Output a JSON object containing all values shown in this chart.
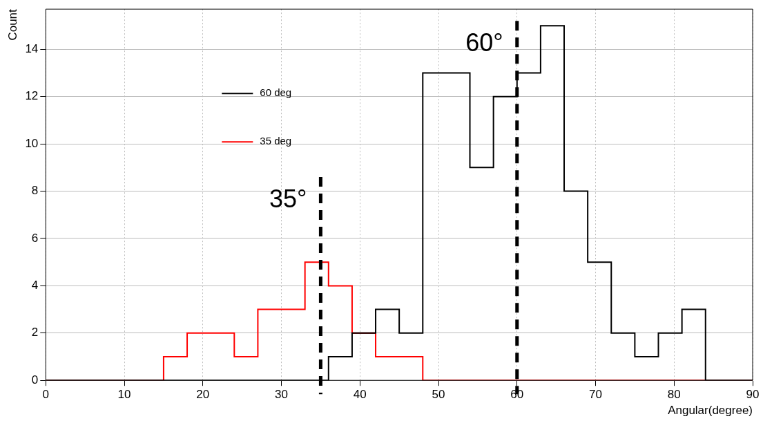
{
  "chart_data": {
    "type": "histogram",
    "xlabel": "Angular(degree)",
    "ylabel": "Count",
    "bins": [
      0,
      3,
      6,
      9,
      12,
      15,
      18,
      21,
      24,
      27,
      30,
      33,
      36,
      39,
      42,
      45,
      48,
      51,
      54,
      57,
      60,
      63,
      66,
      69,
      72,
      75,
      78,
      81,
      84,
      87,
      90
    ],
    "series": [
      {
        "name": "60 deg",
        "color": "#000000",
        "values": [
          0,
          0,
          0,
          0,
          0,
          0,
          0,
          0,
          0,
          0,
          0,
          0,
          1,
          2,
          3,
          2,
          13,
          13,
          9,
          12,
          13,
          15,
          8,
          5,
          2,
          1,
          2,
          3,
          0,
          0
        ]
      },
      {
        "name": "35 deg",
        "color": "#ff0000",
        "values": [
          0,
          0,
          0,
          0,
          0,
          1,
          2,
          2,
          1,
          3,
          3,
          5,
          4,
          2,
          1,
          1,
          0,
          0,
          0,
          0,
          0,
          0,
          0,
          0,
          0,
          0,
          0,
          0,
          0,
          0
        ]
      }
    ],
    "xlim": [
      0,
      90
    ],
    "xticks": [
      0,
      10,
      20,
      30,
      40,
      50,
      60,
      70,
      80,
      90
    ],
    "ylim": [
      0,
      15.7
    ],
    "yticks": [
      0,
      2,
      4,
      6,
      8,
      10,
      12,
      14
    ],
    "ref_lines": [
      {
        "axis": "x",
        "value": 35,
        "label": "35°",
        "color": "#000000",
        "line_style": "dashed"
      },
      {
        "axis": "x",
        "value": 60,
        "label": "60°",
        "color": "#000000",
        "line_style": "dashed"
      }
    ],
    "grid": true,
    "legend": "top left"
  }
}
